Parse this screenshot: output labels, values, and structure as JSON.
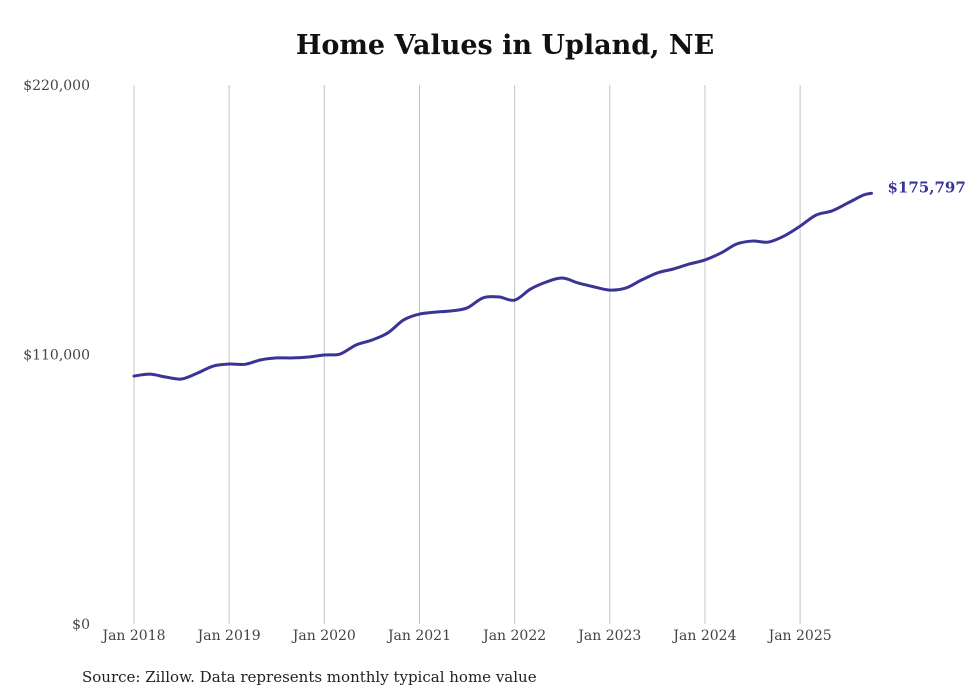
{
  "chart_data": {
    "type": "line",
    "title": "Home Values in Upland, NE",
    "xlabel": "",
    "ylabel": "",
    "ylim": [
      0,
      220000
    ],
    "y_ticks": [
      {
        "value": 0,
        "label": "$0"
      },
      {
        "value": 110000,
        "label": "$110,000"
      },
      {
        "value": 220000,
        "label": "$220,000"
      }
    ],
    "x_ticks": [
      {
        "month": 0,
        "label": "Jan 2018"
      },
      {
        "month": 12,
        "label": "Jan 2019"
      },
      {
        "month": 24,
        "label": "Jan 2020"
      },
      {
        "month": 36,
        "label": "Jan 2021"
      },
      {
        "month": 48,
        "label": "Jan 2022"
      },
      {
        "month": 60,
        "label": "Jan 2023"
      },
      {
        "month": 72,
        "label": "Jan 2024"
      },
      {
        "month": 84,
        "label": "Jan 2025"
      }
    ],
    "grid": "vertical",
    "series": [
      {
        "name": "Typical home value",
        "color": "#3a3496",
        "x_unit": "months since Jan 2018",
        "x": [
          0,
          2,
          4,
          6,
          8,
          10,
          12,
          14,
          16,
          18,
          20,
          22,
          24,
          26,
          28,
          30,
          32,
          34,
          36,
          38,
          40,
          42,
          44,
          46,
          48,
          50,
          52,
          54,
          56,
          58,
          60,
          62,
          64,
          66,
          68,
          70,
          72,
          74,
          76,
          78,
          80,
          82,
          84,
          86,
          88,
          90,
          92,
          93
        ],
        "values": [
          101200,
          102000,
          100800,
          100000,
          102400,
          105300,
          106100,
          106000,
          107800,
          108600,
          108600,
          109000,
          109800,
          110200,
          113900,
          115900,
          118800,
          124100,
          126500,
          127300,
          127800,
          129000,
          133100,
          133500,
          132200,
          136700,
          139600,
          141200,
          139200,
          137600,
          136300,
          137100,
          140400,
          143300,
          144900,
          146900,
          148600,
          151400,
          155100,
          156300,
          155900,
          158400,
          162400,
          166900,
          168600,
          171800,
          175100,
          175797
        ]
      }
    ],
    "end_label": "$175,797",
    "source": "Source: Zillow. Data represents monthly typical home value"
  }
}
